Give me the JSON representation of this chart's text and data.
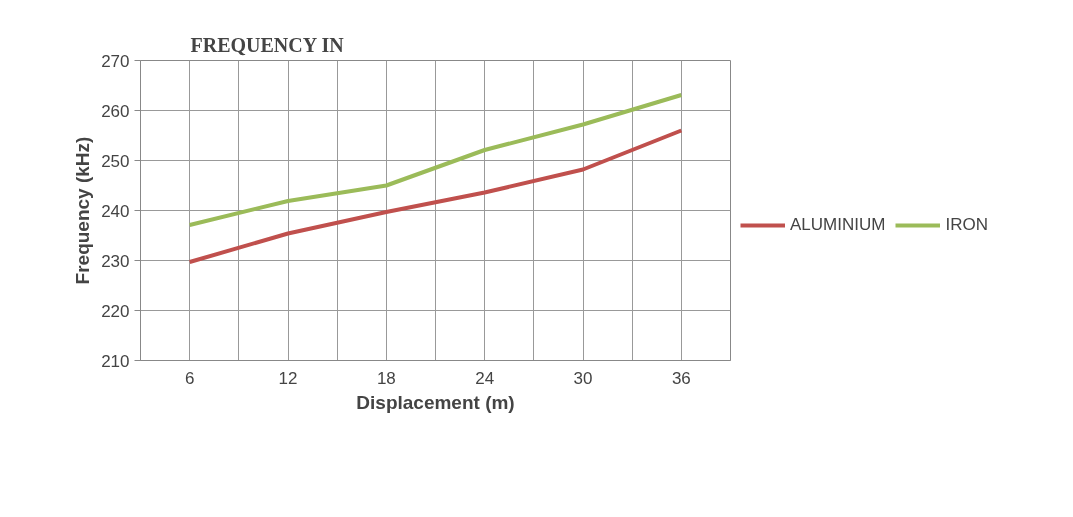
{
  "chart_data": {
    "type": "line",
    "title": "FREQUENCY IN",
    "xlabel": "Displacement (m)",
    "ylabel": "Frequency (kHz)",
    "categories": [
      "6",
      "12",
      "18",
      "24",
      "30",
      "36"
    ],
    "series": [
      {
        "name": "ALUMINIUM",
        "color": "#c0504d",
        "values": [
          229.7,
          235.4,
          239.7,
          243.6,
          248.2,
          256.0
        ]
      },
      {
        "name": "IRON",
        "color": "#9bbb59",
        "values": [
          237.1,
          241.9,
          245.0,
          252.1,
          257.2,
          263.1
        ]
      }
    ],
    "ylim": [
      210,
      270
    ],
    "yticks": [
      210,
      220,
      230,
      240,
      250,
      260,
      270
    ],
    "grid": true,
    "legend": "right",
    "marker": "none",
    "line_style": "solid"
  }
}
